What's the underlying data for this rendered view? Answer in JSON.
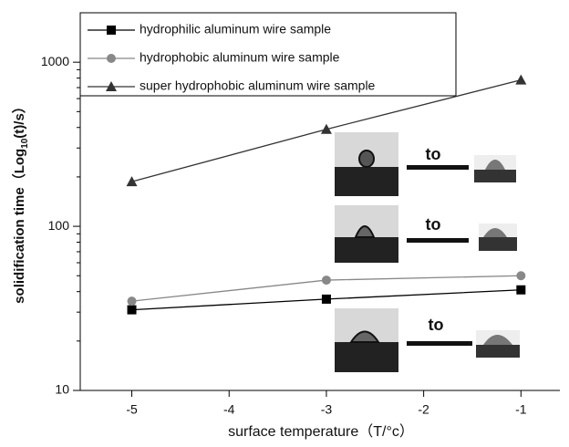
{
  "chart_data": {
    "type": "line",
    "x_label": "surface temperature（T/°c）",
    "y_label": {
      "text": "solidification time（Log",
      "subscript": "10",
      "suffix": "(t)/s）"
    },
    "x": [
      -5,
      -3,
      -1
    ],
    "series": [
      {
        "name": "hydrophilic aluminum wire sample",
        "color": "#000000",
        "marker": "square",
        "values": [
          31,
          36,
          41
        ]
      },
      {
        "name": "hydrophobic aluminum wire sample",
        "color": "#888888",
        "marker": "circle",
        "values": [
          35,
          47,
          50
        ]
      },
      {
        "name": "super hydrophobic aluminum wire sample",
        "color": "#333333",
        "marker": "triangle",
        "values": [
          187,
          390,
          780
        ]
      }
    ],
    "xlim": [
      -5.53,
      -0.6
    ],
    "xticks": [
      -5,
      -4,
      -3,
      -2,
      -1
    ],
    "ylim": [
      10,
      2000
    ],
    "yticks": [
      10,
      100,
      1000
    ],
    "log_y": true,
    "annotations": [
      "to",
      "to",
      "to"
    ]
  }
}
